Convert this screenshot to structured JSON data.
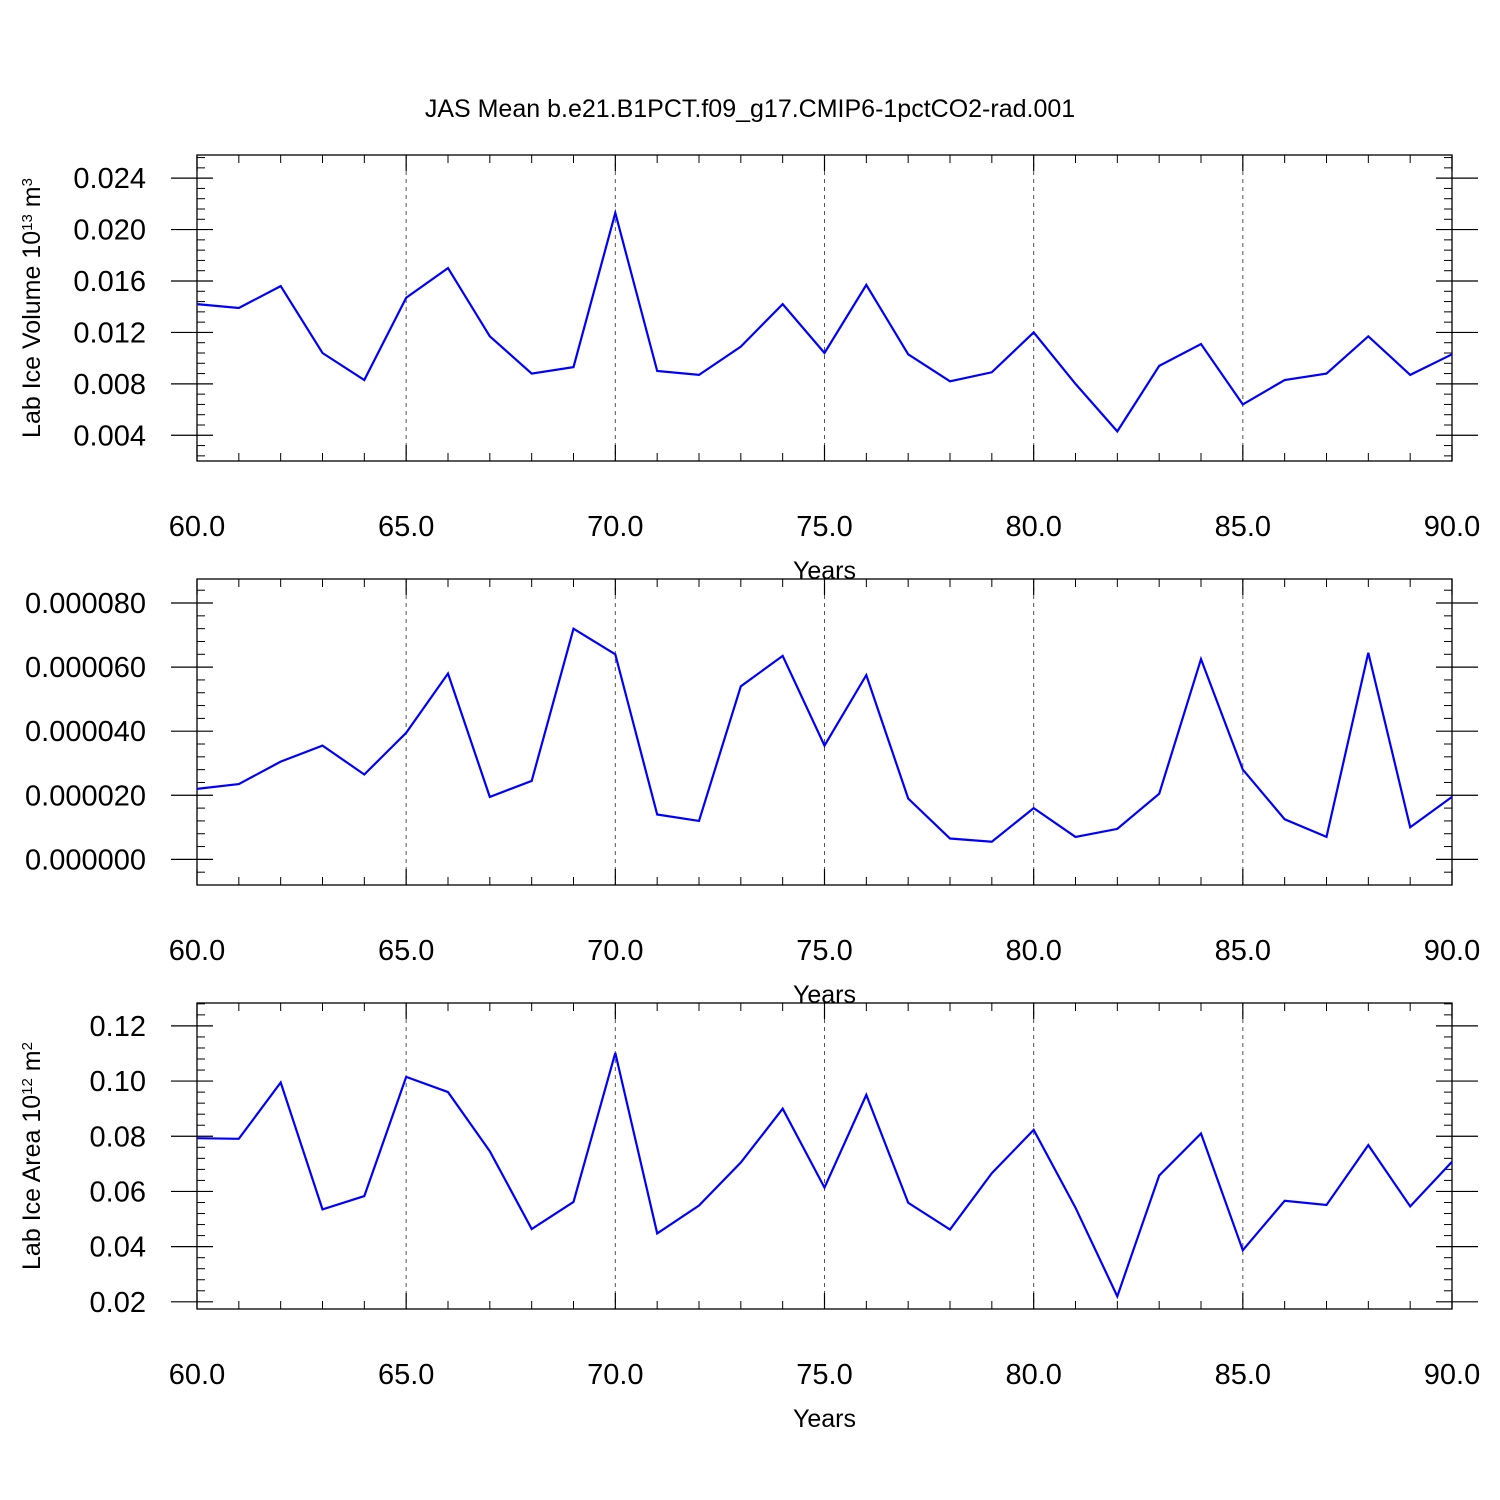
{
  "title": "JAS Mean b.e21.B1PCT.f09_g17.CMIP6-1pctCO2-rad.001",
  "colors": {
    "series": "#0000ff",
    "axes": "#000000",
    "grid": "#555555",
    "background": "#ffffff"
  },
  "chart_data": [
    {
      "type": "line",
      "xlabel": "Years",
      "ylabel": "Lab Ice Volume 10",
      "ylabel_exp": "13",
      "ylabel_unit": " m",
      "ylabel_unit_exp": "3",
      "xlim": [
        60,
        90
      ],
      "ylim": [
        0.002,
        0.0258
      ],
      "xticks": [
        60,
        65,
        70,
        75,
        80,
        85,
        90
      ],
      "xtick_labels": [
        "60.0",
        "65.0",
        "70.0",
        "75.0",
        "80.0",
        "85.0",
        "90.0"
      ],
      "yticks": [
        0.004,
        0.008,
        0.012,
        0.016,
        0.02,
        0.024
      ],
      "ytick_labels": [
        "0.004",
        "0.008",
        "0.012",
        "0.016",
        "0.020",
        "0.024"
      ],
      "grid": "vertical dashed at major x ticks",
      "x": [
        60,
        61,
        62,
        63,
        64,
        65,
        66,
        67,
        68,
        69,
        70,
        71,
        72,
        73,
        74,
        75,
        76,
        77,
        78,
        79,
        80,
        81,
        82,
        83,
        84,
        85,
        86,
        87,
        88,
        89,
        90
      ],
      "values": [
        0.0142,
        0.0139,
        0.0156,
        0.0104,
        0.0083,
        0.0147,
        0.017,
        0.0117,
        0.0088,
        0.0093,
        0.0213,
        0.009,
        0.0087,
        0.0109,
        0.0142,
        0.0104,
        0.0157,
        0.0103,
        0.0082,
        0.0089,
        0.012,
        0.008,
        0.0043,
        0.0094,
        0.0111,
        0.0064,
        0.0083,
        0.0088,
        0.0117,
        0.0087,
        0.0103
      ]
    },
    {
      "type": "line",
      "xlabel": "Years",
      "ylabel": "",
      "xlim": [
        60,
        90
      ],
      "ylim": [
        -8e-06,
        8.75e-05
      ],
      "xticks": [
        60,
        65,
        70,
        75,
        80,
        85,
        90
      ],
      "xtick_labels": [
        "60.0",
        "65.0",
        "70.0",
        "75.0",
        "80.0",
        "85.0",
        "90.0"
      ],
      "yticks": [
        0.0,
        2e-05,
        4e-05,
        6e-05,
        8e-05
      ],
      "ytick_labels": [
        "0.000000",
        "0.000020",
        "0.000040",
        "0.000060",
        "0.000080"
      ],
      "grid": "vertical dashed at major x ticks",
      "x": [
        60,
        61,
        62,
        63,
        64,
        65,
        66,
        67,
        68,
        69,
        70,
        71,
        72,
        73,
        74,
        75,
        76,
        77,
        78,
        79,
        80,
        81,
        82,
        83,
        84,
        85,
        86,
        87,
        88,
        89,
        90
      ],
      "values": [
        2.2e-05,
        2.35e-05,
        3.05e-05,
        3.55e-05,
        2.65e-05,
        3.95e-05,
        5.8e-05,
        1.95e-05,
        2.45e-05,
        7.2e-05,
        6.4e-05,
        1.4e-05,
        1.2e-05,
        5.4e-05,
        6.35e-05,
        3.55e-05,
        5.75e-05,
        1.9e-05,
        6.5e-06,
        5.5e-06,
        1.6e-05,
        7e-06,
        9.5e-06,
        2.05e-05,
        6.25e-05,
        2.8e-05,
        1.25e-05,
        7e-06,
        6.45e-05,
        1e-05,
        1.95e-05
      ]
    },
    {
      "type": "line",
      "xlabel": "Years",
      "ylabel": "Lab Ice Area 10",
      "ylabel_exp": "12",
      "ylabel_unit": " m",
      "ylabel_unit_exp": "2",
      "xlim": [
        60,
        90
      ],
      "ylim": [
        0.0174,
        0.1283
      ],
      "xticks": [
        60,
        65,
        70,
        75,
        80,
        85,
        90
      ],
      "xtick_labels": [
        "60.0",
        "65.0",
        "70.0",
        "75.0",
        "80.0",
        "85.0",
        "90.0"
      ],
      "yticks": [
        0.02,
        0.04,
        0.06,
        0.08,
        0.1,
        0.12
      ],
      "ytick_labels": [
        "0.02",
        "0.04",
        "0.06",
        "0.08",
        "0.10",
        "0.12"
      ],
      "grid": "vertical dashed at major x ticks",
      "x": [
        60,
        61,
        62,
        63,
        64,
        65,
        66,
        67,
        68,
        69,
        70,
        71,
        72,
        73,
        74,
        75,
        76,
        77,
        78,
        79,
        80,
        81,
        82,
        83,
        84,
        85,
        86,
        87,
        88,
        89,
        90
      ],
      "values": [
        0.0793,
        0.0791,
        0.0995,
        0.0535,
        0.0583,
        0.1015,
        0.096,
        0.0746,
        0.0464,
        0.0562,
        0.1102,
        0.0448,
        0.0549,
        0.0705,
        0.09,
        0.0614,
        0.095,
        0.0559,
        0.0462,
        0.0666,
        0.0823,
        0.0541,
        0.022,
        0.0658,
        0.081,
        0.0387,
        0.0566,
        0.0551,
        0.0768,
        0.0546,
        0.0708
      ]
    }
  ]
}
